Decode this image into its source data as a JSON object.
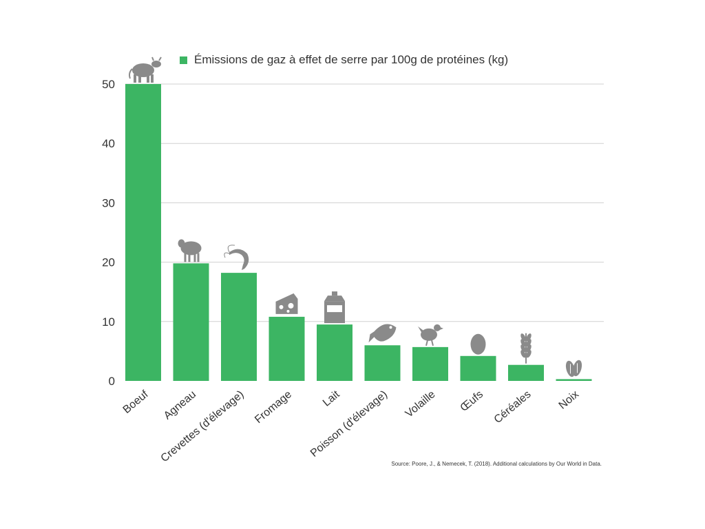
{
  "colors": {
    "bar": "#3cb563",
    "icon": "#8a8a8a",
    "grid": "#d0d0d0",
    "text": "#333333"
  },
  "chart_data": {
    "type": "bar",
    "legend": "Émissions de gaz à effet de serre par 100g de protéines (kg)",
    "legend_position": "top",
    "categories": [
      "Boeuf",
      "Agneau",
      "Crevettes (d'élevage)",
      "Fromage",
      "Lait",
      "Poisson (d'élevage)",
      "Volaille",
      "Œufs",
      "Céréales",
      "Noix"
    ],
    "icons": [
      "cow-icon",
      "sheep-icon",
      "shrimp-icon",
      "cheese-icon",
      "milk-icon",
      "fish-icon",
      "chicken-icon",
      "egg-icon",
      "wheat-icon",
      "nuts-icon"
    ],
    "series": [
      {
        "name": "Émissions de gaz à effet de serre par 100g de protéines (kg)",
        "values": [
          50,
          19.8,
          18.2,
          10.8,
          9.5,
          6.0,
          5.7,
          4.2,
          2.7,
          0.3
        ]
      }
    ],
    "yticks": [
      0,
      10,
      20,
      30,
      40,
      50
    ],
    "ylim": [
      0,
      50
    ],
    "grid": true,
    "source": "Source: Poore, J., & Nemecek, T. (2018). Additional calculations by Our World in Data."
  }
}
